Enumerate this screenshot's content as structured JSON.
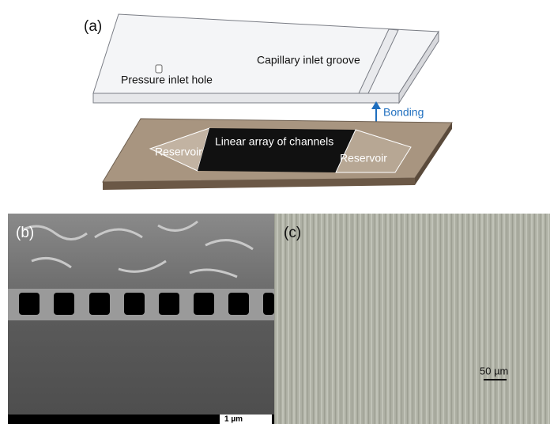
{
  "panels": {
    "a": {
      "label": "(a)",
      "capillary_groove": "Capillary inlet groove",
      "pressure_hole": "Pressure inlet hole",
      "bonding": "Bonding",
      "reservoir_left": "Reservoir",
      "channels": "Linear array of channels",
      "reservoir_right": "Reservoir"
    },
    "b": {
      "label": "(b)",
      "scale_bar": "1 µm"
    },
    "c": {
      "label": "(c)",
      "scale_bar": "50 µm"
    }
  }
}
